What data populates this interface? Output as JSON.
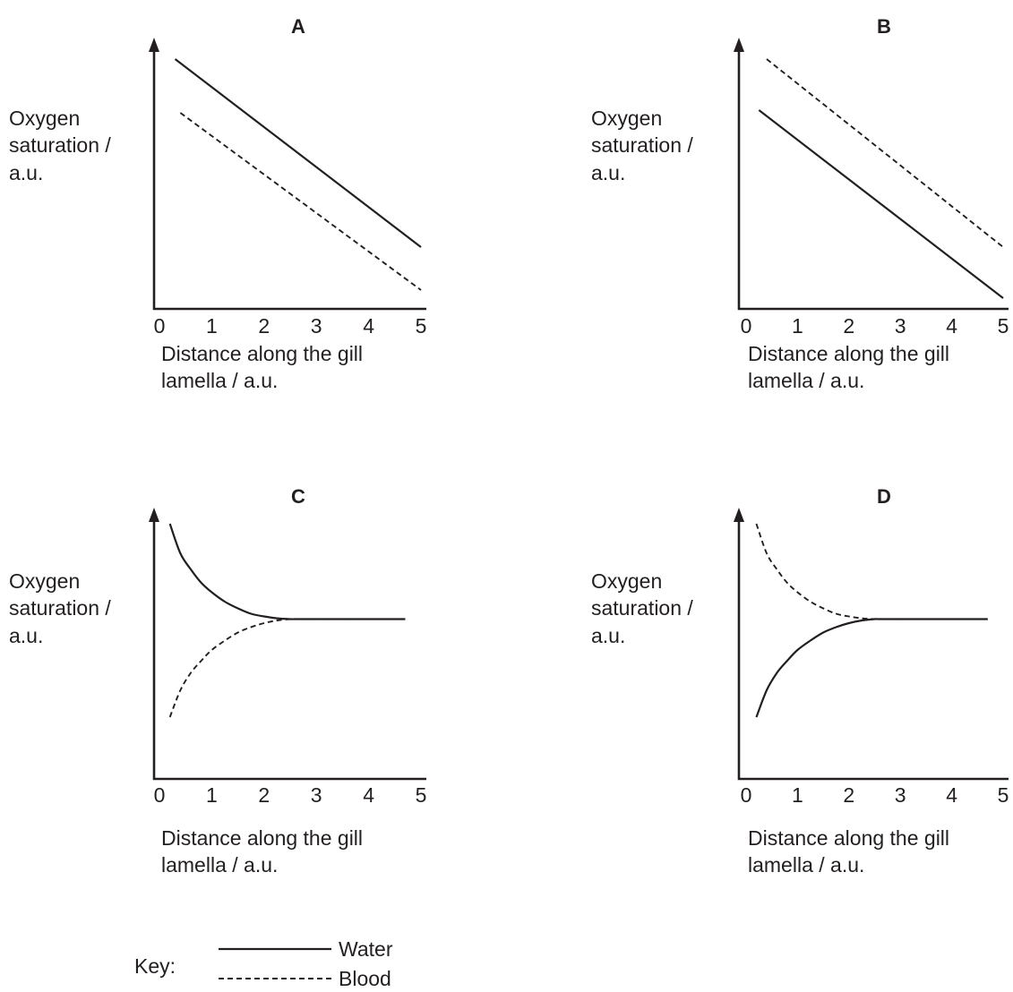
{
  "chart_data": [
    {
      "type": "line",
      "title": "A",
      "ylabel": [
        "Oxygen",
        "saturation /",
        "a.u."
      ],
      "xlabel": [
        "Distance along the gill",
        "lamella / a.u."
      ],
      "x_ticks": [
        "0",
        "1",
        "2",
        "3",
        "4",
        "5"
      ],
      "xlim": [
        0,
        5
      ],
      "ylim": [
        0,
        10
      ],
      "series": [
        {
          "name": "Water",
          "style": "solid",
          "x": [
            0.3,
            5
          ],
          "y": [
            9.3,
            2.3
          ]
        },
        {
          "name": "Blood",
          "style": "dashed",
          "x": [
            0.4,
            5
          ],
          "y": [
            7.3,
            0.7
          ]
        }
      ]
    },
    {
      "type": "line",
      "title": "B",
      "ylabel": [
        "Oxygen",
        "saturation /",
        "a.u."
      ],
      "xlabel": [
        "Distance along the gill",
        "lamella / a.u."
      ],
      "x_ticks": [
        "0",
        "1",
        "2",
        "3",
        "4",
        "5"
      ],
      "xlim": [
        0,
        5
      ],
      "ylim": [
        0,
        10
      ],
      "series": [
        {
          "name": "Water",
          "style": "solid",
          "x": [
            0.25,
            5
          ],
          "y": [
            7.4,
            0.4
          ]
        },
        {
          "name": "Blood",
          "style": "dashed",
          "x": [
            0.4,
            5
          ],
          "y": [
            9.3,
            2.3
          ]
        }
      ]
    },
    {
      "type": "line",
      "title": "C",
      "ylabel": [
        "Oxygen",
        "saturation /",
        "a.u."
      ],
      "xlabel": [
        "Distance along the gill",
        "lamella / a.u."
      ],
      "x_ticks": [
        "0",
        "1",
        "2",
        "3",
        "4",
        "5"
      ],
      "xlim": [
        0,
        5
      ],
      "ylim": [
        0,
        10
      ],
      "series": [
        {
          "name": "Water",
          "style": "solid",
          "x": [
            0.2,
            0.4,
            0.6,
            0.8,
            1.0,
            1.25,
            1.5,
            1.75,
            2.0,
            2.25,
            2.5,
            2.6,
            3.0,
            4.0,
            4.7
          ],
          "y": [
            9.5,
            8.4,
            7.8,
            7.3,
            6.95,
            6.6,
            6.35,
            6.15,
            6.05,
            5.98,
            5.95,
            5.95,
            5.95,
            5.95,
            5.95
          ]
        },
        {
          "name": "Blood",
          "style": "dashed",
          "x": [
            0.2,
            0.4,
            0.6,
            0.8,
            1.0,
            1.25,
            1.5,
            1.75,
            2.0,
            2.25,
            2.5,
            2.6,
            3.0,
            4.0,
            4.7
          ],
          "y": [
            2.3,
            3.3,
            3.95,
            4.4,
            4.8,
            5.15,
            5.45,
            5.65,
            5.8,
            5.9,
            5.95,
            5.95,
            5.95,
            5.95,
            5.95
          ]
        }
      ]
    },
    {
      "type": "line",
      "title": "D",
      "ylabel": [
        "Oxygen",
        "saturation /",
        "a.u."
      ],
      "xlabel": [
        "Distance along the gill",
        "lamella / a.u."
      ],
      "x_ticks": [
        "0",
        "1",
        "2",
        "3",
        "4",
        "5"
      ],
      "xlim": [
        0,
        5
      ],
      "ylim": [
        0,
        10
      ],
      "series": [
        {
          "name": "Water",
          "style": "solid",
          "x": [
            0.2,
            0.4,
            0.6,
            0.8,
            1.0,
            1.25,
            1.5,
            1.75,
            2.0,
            2.25,
            2.5,
            2.6,
            3.0,
            4.0,
            4.7
          ],
          "y": [
            2.3,
            3.3,
            3.95,
            4.4,
            4.8,
            5.15,
            5.45,
            5.65,
            5.8,
            5.9,
            5.95,
            5.95,
            5.95,
            5.95,
            5.95
          ]
        },
        {
          "name": "Blood",
          "style": "dashed",
          "x": [
            0.2,
            0.4,
            0.6,
            0.8,
            1.0,
            1.25,
            1.5,
            1.75,
            2.0,
            2.25,
            2.5,
            2.6,
            3.0,
            4.0,
            4.7
          ],
          "y": [
            9.5,
            8.4,
            7.8,
            7.3,
            6.95,
            6.6,
            6.35,
            6.15,
            6.05,
            5.98,
            5.95,
            5.95,
            5.95,
            5.95,
            5.95
          ]
        }
      ]
    }
  ],
  "key": {
    "label": "Key:",
    "items": [
      {
        "name": "Water",
        "style": "solid"
      },
      {
        "name": "Blood",
        "style": "dashed"
      }
    ]
  }
}
